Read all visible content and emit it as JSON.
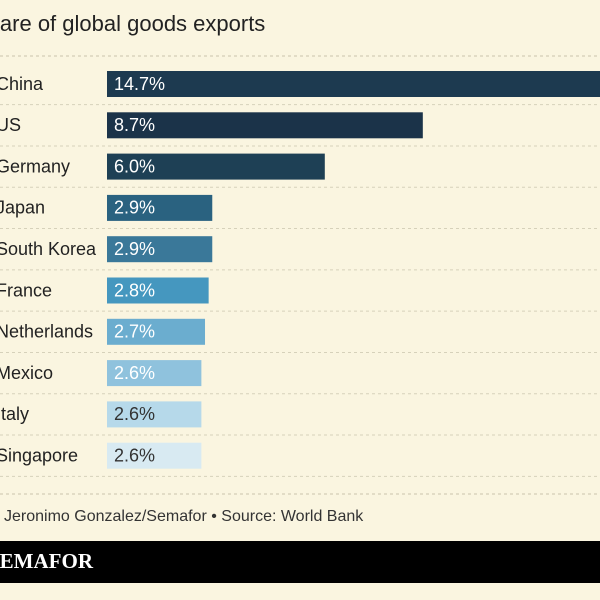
{
  "chart_data": {
    "type": "bar",
    "orientation": "horizontal",
    "title": "Share of global goods exports",
    "categories": [
      "China",
      "US",
      "Germany",
      "Japan",
      "South Korea",
      "France",
      "Netherlands",
      "Mexico",
      "Italy",
      "Singapore"
    ],
    "values": [
      14.7,
      8.7,
      6.0,
      2.9,
      2.9,
      2.8,
      2.7,
      2.6,
      2.6,
      2.6
    ],
    "value_labels": [
      "14.7%",
      "8.7%",
      "6.0%",
      "2.9%",
      "2.9%",
      "2.8%",
      "2.7%",
      "2.6%",
      "2.6%",
      "2.6%"
    ],
    "colors": [
      "#1d3a50",
      "#1b3349",
      "#1e4055",
      "#2a6280",
      "#3a7899",
      "#4597bf",
      "#6badcf",
      "#8fc2dd",
      "#b6d9ea",
      "#d8eaf2"
    ],
    "source": "Chart: Jeronimo Gonzalez/Semafor • Source: World Bank",
    "brand": "SEMAFOR"
  }
}
